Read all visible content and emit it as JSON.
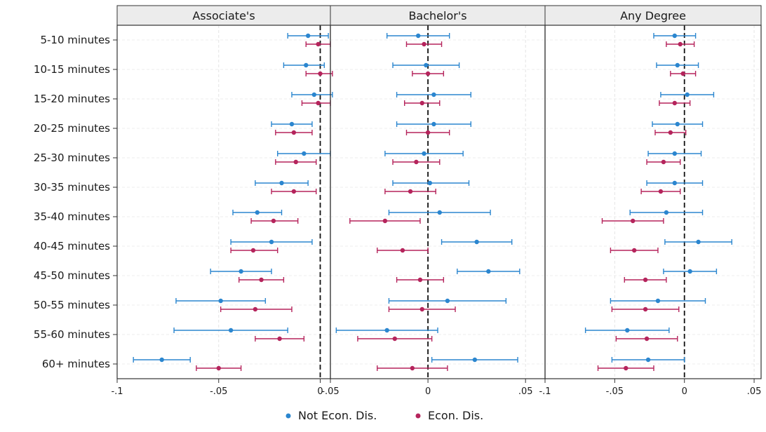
{
  "chart_data": {
    "type": "scatter",
    "style": "coefficient-plot-with-95ci",
    "categories": [
      "5-10 minutes",
      "10-15 minutes",
      "15-20 minutes",
      "20-25 minutes",
      "25-30 minutes",
      "30-35 minutes",
      "35-40 minutes",
      "40-45 minutes",
      "45-50 minutes",
      "50-55 minutes",
      "55-60 minutes",
      "60+ minutes"
    ],
    "legend": {
      "position": "bottom"
    },
    "series_meta": [
      {
        "key": "not",
        "name": "Not Econ. Dis.",
        "color": "#2b86cf"
      },
      {
        "key": "econ",
        "name": "Econ. Dis.",
        "color": "#b5245c"
      }
    ],
    "reference_line": {
      "x": 0,
      "style": "dashed"
    },
    "panels": [
      {
        "title": "Associate's",
        "xlim": [
          -0.1,
          0.005
        ],
        "ticks": [
          {
            "v": -0.1,
            "label": "-.1"
          },
          {
            "v": -0.05,
            "label": "-.05"
          },
          {
            "v": 0,
            "label": "0"
          }
        ],
        "series": {
          "not": [
            {
              "est": -0.006,
              "lo": -0.016,
              "hi": 0.004
            },
            {
              "est": -0.007,
              "lo": -0.018,
              "hi": 0.002
            },
            {
              "est": -0.003,
              "lo": -0.014,
              "hi": 0.006
            },
            {
              "est": -0.014,
              "lo": -0.024,
              "hi": -0.004
            },
            {
              "est": -0.008,
              "lo": -0.021,
              "hi": 0.005
            },
            {
              "est": -0.019,
              "lo": -0.032,
              "hi": -0.006
            },
            {
              "est": -0.031,
              "lo": -0.043,
              "hi": -0.019
            },
            {
              "est": -0.024,
              "lo": -0.044,
              "hi": -0.004
            },
            {
              "est": -0.039,
              "lo": -0.054,
              "hi": -0.024
            },
            {
              "est": -0.049,
              "lo": -0.071,
              "hi": -0.027
            },
            {
              "est": -0.044,
              "lo": -0.072,
              "hi": -0.016
            },
            {
              "est": -0.078,
              "lo": -0.092,
              "hi": -0.064
            }
          ],
          "econ": [
            {
              "est": -0.001,
              "lo": -0.007,
              "hi": 0.005
            },
            {
              "est": 0.0,
              "lo": -0.007,
              "hi": 0.006
            },
            {
              "est": -0.001,
              "lo": -0.009,
              "hi": 0.005
            },
            {
              "est": -0.013,
              "lo": -0.022,
              "hi": -0.004
            },
            {
              "est": -0.012,
              "lo": -0.022,
              "hi": -0.002
            },
            {
              "est": -0.013,
              "lo": -0.024,
              "hi": -0.002
            },
            {
              "est": -0.023,
              "lo": -0.034,
              "hi": -0.011
            },
            {
              "est": -0.033,
              "lo": -0.044,
              "hi": -0.021
            },
            {
              "est": -0.029,
              "lo": -0.04,
              "hi": -0.018
            },
            {
              "est": -0.032,
              "lo": -0.049,
              "hi": -0.014
            },
            {
              "est": -0.02,
              "lo": -0.032,
              "hi": -0.008
            },
            {
              "est": -0.05,
              "lo": -0.061,
              "hi": -0.039
            }
          ]
        }
      },
      {
        "title": "Bachelor's",
        "xlim": [
          -0.05,
          0.06
        ],
        "ticks": [
          {
            "v": -0.05,
            "label": "-.05"
          },
          {
            "v": 0,
            "label": "0"
          },
          {
            "v": 0.05,
            "label": ".05"
          }
        ],
        "series": {
          "not": [
            {
              "est": -0.005,
              "lo": -0.021,
              "hi": 0.011
            },
            {
              "est": -0.001,
              "lo": -0.018,
              "hi": 0.016
            },
            {
              "est": 0.003,
              "lo": -0.016,
              "hi": 0.022
            },
            {
              "est": 0.003,
              "lo": -0.016,
              "hi": 0.022
            },
            {
              "est": -0.002,
              "lo": -0.022,
              "hi": 0.018
            },
            {
              "est": 0.001,
              "lo": -0.018,
              "hi": 0.021
            },
            {
              "est": 0.006,
              "lo": -0.02,
              "hi": 0.032
            },
            {
              "est": 0.025,
              "lo": 0.007,
              "hi": 0.043
            },
            {
              "est": 0.031,
              "lo": 0.015,
              "hi": 0.047
            },
            {
              "est": 0.01,
              "lo": -0.02,
              "hi": 0.04
            },
            {
              "est": -0.021,
              "lo": -0.047,
              "hi": 0.005
            },
            {
              "est": 0.024,
              "lo": 0.002,
              "hi": 0.046
            }
          ],
          "econ": [
            {
              "est": -0.002,
              "lo": -0.011,
              "hi": 0.007
            },
            {
              "est": 0.0,
              "lo": -0.008,
              "hi": 0.008
            },
            {
              "est": -0.003,
              "lo": -0.012,
              "hi": 0.006
            },
            {
              "est": 0.0,
              "lo": -0.011,
              "hi": 0.011
            },
            {
              "est": -0.006,
              "lo": -0.018,
              "hi": 0.006
            },
            {
              "est": -0.009,
              "lo": -0.022,
              "hi": 0.004
            },
            {
              "est": -0.022,
              "lo": -0.04,
              "hi": -0.004
            },
            {
              "est": -0.013,
              "lo": -0.026,
              "hi": 0.0
            },
            {
              "est": -0.004,
              "lo": -0.016,
              "hi": 0.008
            },
            {
              "est": -0.003,
              "lo": -0.02,
              "hi": 0.014
            },
            {
              "est": -0.017,
              "lo": -0.036,
              "hi": 0.002
            },
            {
              "est": -0.008,
              "lo": -0.026,
              "hi": 0.01
            }
          ]
        }
      },
      {
        "title": "Any Degree",
        "xlim": [
          -0.1,
          0.055
        ],
        "ticks": [
          {
            "v": -0.1,
            "label": "-.1"
          },
          {
            "v": -0.05,
            "label": "-.05"
          },
          {
            "v": 0,
            "label": "0"
          },
          {
            "v": 0.05,
            "label": ".05"
          }
        ],
        "series": {
          "not": [
            {
              "est": -0.007,
              "lo": -0.022,
              "hi": 0.008
            },
            {
              "est": -0.005,
              "lo": -0.02,
              "hi": 0.01
            },
            {
              "est": 0.002,
              "lo": -0.017,
              "hi": 0.021
            },
            {
              "est": -0.005,
              "lo": -0.023,
              "hi": 0.013
            },
            {
              "est": -0.007,
              "lo": -0.026,
              "hi": 0.012
            },
            {
              "est": -0.007,
              "lo": -0.027,
              "hi": 0.013
            },
            {
              "est": -0.013,
              "lo": -0.039,
              "hi": 0.013
            },
            {
              "est": 0.01,
              "lo": -0.014,
              "hi": 0.034
            },
            {
              "est": 0.004,
              "lo": -0.015,
              "hi": 0.023
            },
            {
              "est": -0.019,
              "lo": -0.053,
              "hi": 0.015
            },
            {
              "est": -0.041,
              "lo": -0.071,
              "hi": -0.011
            },
            {
              "est": -0.026,
              "lo": -0.052,
              "hi": 0.0
            }
          ],
          "econ": [
            {
              "est": -0.003,
              "lo": -0.013,
              "hi": 0.007
            },
            {
              "est": -0.001,
              "lo": -0.01,
              "hi": 0.008
            },
            {
              "est": -0.007,
              "lo": -0.018,
              "hi": 0.004
            },
            {
              "est": -0.01,
              "lo": -0.021,
              "hi": 0.001
            },
            {
              "est": -0.015,
              "lo": -0.027,
              "hi": -0.003
            },
            {
              "est": -0.017,
              "lo": -0.031,
              "hi": -0.003
            },
            {
              "est": -0.037,
              "lo": -0.059,
              "hi": -0.015
            },
            {
              "est": -0.036,
              "lo": -0.053,
              "hi": -0.019
            },
            {
              "est": -0.028,
              "lo": -0.043,
              "hi": -0.013
            },
            {
              "est": -0.028,
              "lo": -0.052,
              "hi": -0.004
            },
            {
              "est": -0.027,
              "lo": -0.049,
              "hi": -0.005
            },
            {
              "est": -0.042,
              "lo": -0.062,
              "hi": -0.022
            }
          ]
        }
      }
    ]
  }
}
